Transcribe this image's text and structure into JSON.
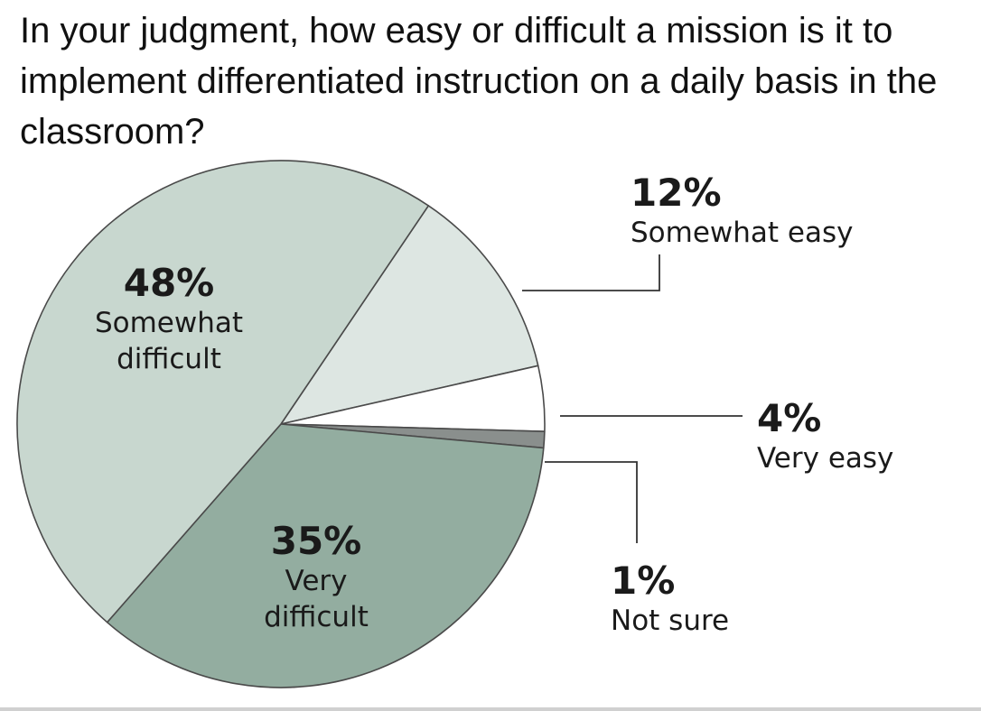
{
  "question": "In your judgment, how easy or difficult a mission is it to implement differentiated instruction on a daily basis in the classroom?",
  "chart_data": {
    "type": "pie",
    "title": "In your judgment, how easy or difficult a mission is it to implement differentiated instruction on a daily basis in the classroom?",
    "slices": [
      {
        "label": "Somewhat easy",
        "value": 12,
        "value_label": "12%",
        "color": "#dde6e2"
      },
      {
        "label": "Very easy",
        "value": 4,
        "value_label": "4%",
        "color": "#ffffff"
      },
      {
        "label": "Not sure",
        "value": 1,
        "value_label": "1%",
        "color": "#8a8f8d"
      },
      {
        "label": "Very difficult",
        "value": 35,
        "value_label": "35%",
        "color": "#93ada0"
      },
      {
        "label": "Somewhat difficult",
        "value": 48,
        "value_label": "48%",
        "color": "#c8d7cf"
      }
    ],
    "outline_color": "#4a4a4a"
  }
}
